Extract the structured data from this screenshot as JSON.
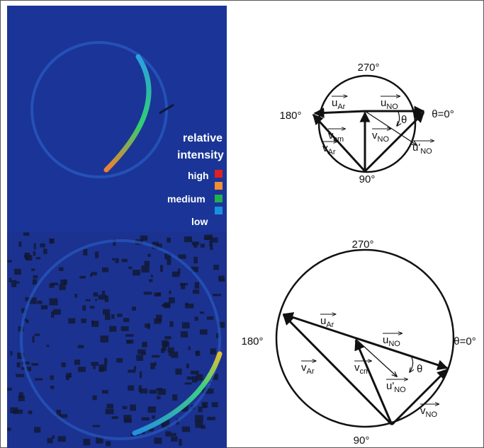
{
  "top_image": {
    "legend_title": [
      "relative",
      "intensity"
    ],
    "levels": [
      "high",
      "medium",
      "low"
    ]
  },
  "top_diagram": {
    "angles": {
      "top": "270°",
      "left": "180°",
      "bottom": "90°",
      "right": "θ=0°"
    },
    "theta": "θ",
    "vectors": [
      {
        "base": "u",
        "sub": "Ar"
      },
      {
        "base": "u",
        "sub": "NO"
      },
      {
        "base": "v",
        "sub": "cm"
      },
      {
        "base": "v",
        "sub": "NO"
      },
      {
        "base": "v",
        "sub": "Ar"
      },
      {
        "base": "u'",
        "sub": "NO"
      }
    ]
  },
  "bottom_diagram": {
    "angles": {
      "top": "270°",
      "left": "180°",
      "bottom": "90°",
      "right": "θ=0°"
    },
    "theta": "θ",
    "vectors": [
      {
        "base": "u",
        "sub": "Ar"
      },
      {
        "base": "u",
        "sub": "NO"
      },
      {
        "base": "v",
        "sub": "Ar"
      },
      {
        "base": "v",
        "sub": "cm"
      },
      {
        "base": "u'",
        "sub": "NO"
      },
      {
        "base": "v",
        "sub": "NO"
      }
    ]
  }
}
